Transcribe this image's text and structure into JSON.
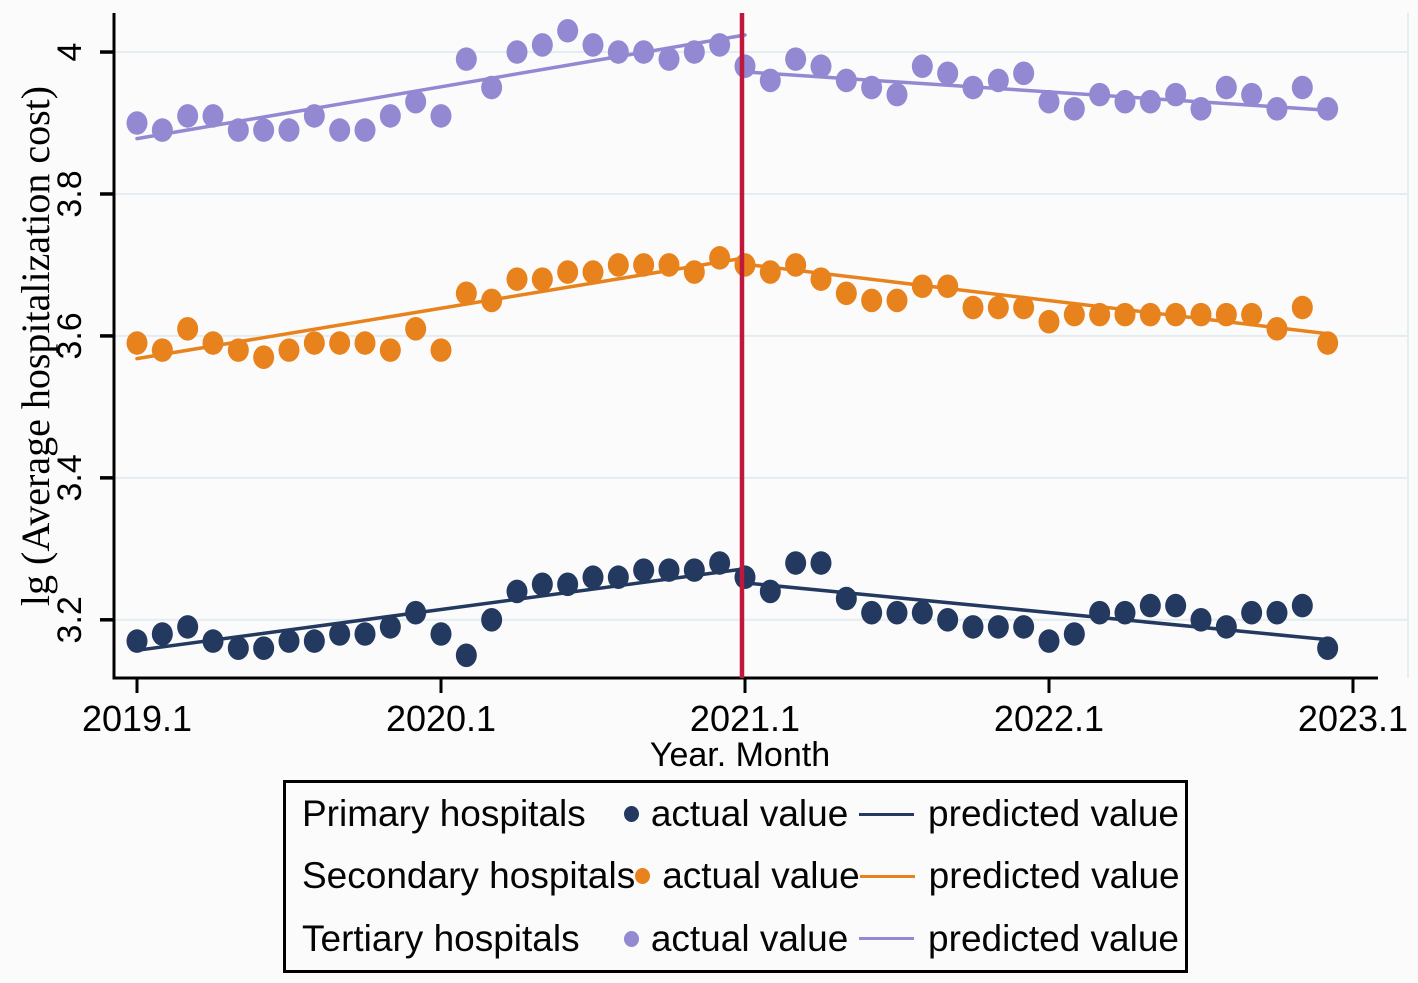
{
  "chart_data": {
    "type": "scatter",
    "title": "",
    "xlabel": "Year. Month",
    "ylabel": "lg (Average hospitalization cost)",
    "x_ticks": [
      "2019.1",
      "2020.1",
      "2021.1",
      "2022.1",
      "2023.1"
    ],
    "x_tick_month_index": [
      0,
      12,
      24,
      36,
      48
    ],
    "y_ticks": [
      "4",
      "3.8",
      "3.6",
      "3.4",
      "3.2"
    ],
    "y_tick_values": [
      4,
      3.8,
      3.6,
      3.4,
      3.2
    ],
    "ylim": [
      3.118,
      4.055
    ],
    "months_start_label": "2019.1",
    "months_count": 48,
    "grid": true,
    "intervention": {
      "at_label": "2021.1",
      "month_index": 24,
      "color": "#c0173c"
    },
    "series": [
      {
        "name": "Tertiary hospitals",
        "color": "#9289d2",
        "actual": [
          3.9,
          3.89,
          3.91,
          3.91,
          3.89,
          3.89,
          3.89,
          3.91,
          3.89,
          3.89,
          3.91,
          3.93,
          3.91,
          3.99,
          3.95,
          4.0,
          4.01,
          4.03,
          4.01,
          4.0,
          4.0,
          3.99,
          4.0,
          4.01,
          3.98,
          3.96,
          3.99,
          3.98,
          3.96,
          3.95,
          3.94,
          3.98,
          3.97,
          3.95,
          3.96,
          3.97,
          3.93,
          3.92,
          3.94,
          3.93,
          3.93,
          3.94,
          3.92,
          3.95,
          3.94,
          3.92,
          3.95,
          3.92
        ],
        "predicted_pre": [
          [
            0,
            3.878
          ],
          [
            24,
            4.024
          ]
        ],
        "predicted_post": [
          [
            24,
            3.972
          ],
          [
            47,
            3.918
          ]
        ]
      },
      {
        "name": "Secondary hospitals",
        "color": "#e8821c",
        "actual": [
          3.59,
          3.58,
          3.61,
          3.59,
          3.58,
          3.57,
          3.58,
          3.59,
          3.59,
          3.59,
          3.58,
          3.61,
          3.58,
          3.66,
          3.65,
          3.68,
          3.68,
          3.69,
          3.69,
          3.7,
          3.7,
          3.7,
          3.69,
          3.71,
          3.7,
          3.69,
          3.7,
          3.68,
          3.66,
          3.65,
          3.65,
          3.67,
          3.67,
          3.64,
          3.64,
          3.64,
          3.62,
          3.63,
          3.63,
          3.63,
          3.63,
          3.63,
          3.63,
          3.63,
          3.63,
          3.61,
          3.64,
          3.59
        ],
        "predicted_pre": [
          [
            0,
            3.568
          ],
          [
            24,
            3.71
          ]
        ],
        "predicted_post": [
          [
            24,
            3.701
          ],
          [
            47,
            3.603
          ]
        ]
      },
      {
        "name": "Primary hospitals",
        "color": "#24395f",
        "actual": [
          3.17,
          3.18,
          3.19,
          3.17,
          3.16,
          3.16,
          3.17,
          3.17,
          3.18,
          3.18,
          3.19,
          3.21,
          3.18,
          3.15,
          3.2,
          3.24,
          3.25,
          3.25,
          3.26,
          3.26,
          3.27,
          3.27,
          3.27,
          3.28,
          3.26,
          3.24,
          3.28,
          3.28,
          3.23,
          3.21,
          3.21,
          3.21,
          3.2,
          3.19,
          3.19,
          3.19,
          3.17,
          3.18,
          3.21,
          3.21,
          3.22,
          3.22,
          3.2,
          3.19,
          3.21,
          3.21,
          3.22,
          3.16
        ],
        "predicted_pre": [
          [
            0,
            3.157
          ],
          [
            24,
            3.272
          ]
        ],
        "predicted_post": [
          [
            24,
            3.252
          ],
          [
            47,
            3.172
          ]
        ]
      }
    ],
    "legend": {
      "position": "bottom",
      "rows": [
        {
          "label": "Primary hospitals",
          "actual_label": "actual value",
          "predicted_label": "predicted value",
          "color": "#24395f"
        },
        {
          "label": "Secondary hospitals",
          "actual_label": "actual value",
          "predicted_label": "predicted value",
          "color": "#e8821c"
        },
        {
          "label": "Tertiary hospitals",
          "actual_label": "actual value",
          "predicted_label": "predicted value",
          "color": "#9289d2"
        }
      ]
    },
    "colors": {
      "grid": "#e3edf2",
      "axis": "#000000",
      "background": "#fbfbfb"
    }
  }
}
